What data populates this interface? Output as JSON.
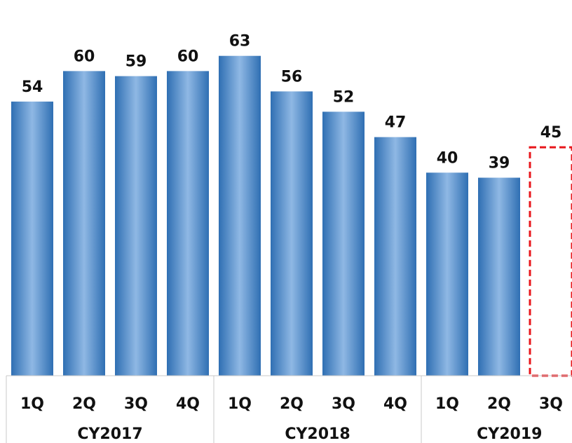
{
  "chart_data": {
    "type": "bar",
    "title": "",
    "xlabel": "",
    "ylabel": "",
    "categories": [
      "1Q",
      "2Q",
      "3Q",
      "4Q",
      "1Q",
      "2Q",
      "3Q",
      "4Q",
      "1Q",
      "2Q",
      "3Q"
    ],
    "groups": [
      {
        "label": "CY2017",
        "count": 4
      },
      {
        "label": "CY2018",
        "count": 4
      },
      {
        "label": "CY2019",
        "count": 3
      }
    ],
    "values": [
      54,
      60,
      59,
      60,
      63,
      56,
      52,
      47,
      40,
      39,
      45
    ],
    "value_labels": [
      "54",
      "60",
      "59",
      "60",
      "63",
      "56",
      "52",
      "47",
      "40",
      "39",
      "45"
    ],
    "forecast_index": 10,
    "ylim": [
      0,
      74
    ],
    "grid": false,
    "colors": {
      "bar_edge": "#2f6fb3",
      "bar_center": "#8fb8e4",
      "forecast_outline": "#e8161b",
      "axis_lines": "#c8c8c8"
    }
  }
}
